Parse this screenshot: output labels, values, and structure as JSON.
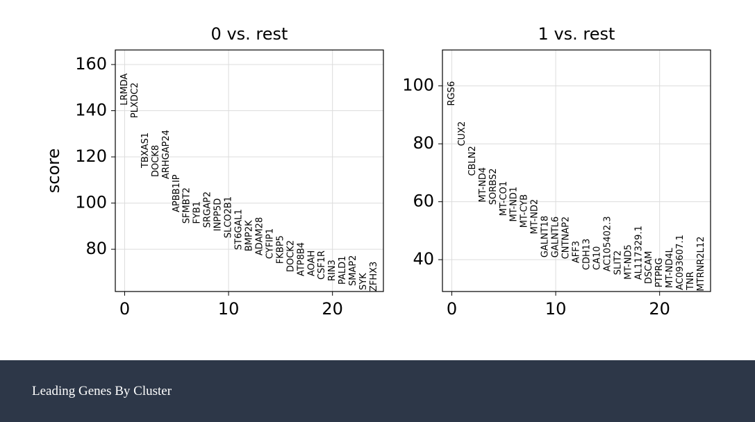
{
  "chart_data": [
    {
      "type": "scatter",
      "title": "0 vs. rest",
      "ylabel": "score",
      "x": [
        0,
        1,
        2,
        3,
        4,
        5,
        6,
        7,
        8,
        9,
        10,
        11,
        12,
        13,
        14,
        15,
        16,
        17,
        18,
        19,
        20,
        21,
        22,
        23,
        24
      ],
      "categories": [
        "LRMDA",
        "PLXDC2",
        "TBXAS1",
        "DOCK8",
        "ARHGAP24",
        "APBB1IP",
        "SFMBT2",
        "FYB1",
        "SRGAP2",
        "INPP5D",
        "SLCO2B1",
        "ST6GAL1",
        "BMP2K",
        "ADAM28",
        "CYFIP1",
        "FKBP5",
        "DOCK2",
        "ATP8B4",
        "AOAH",
        "CSF1R",
        "RIN3",
        "PALD1",
        "SMAP2",
        "SYK",
        "ZFHX3"
      ],
      "values": [
        142.3,
        136.8,
        115.2,
        111.3,
        110.4,
        96,
        91.1,
        91,
        89.3,
        87.8,
        84.8,
        79.7,
        79.1,
        77.3,
        75.8,
        73.7,
        70.1,
        68.3,
        68.3,
        66.8,
        66.2,
        64.7,
        64.1,
        62.3,
        61.7
      ],
      "xlim": [
        -0.9,
        24.9
      ],
      "ylim": [
        61.7,
        166.3
      ],
      "xticks": [
        0,
        10,
        20
      ],
      "yticks": [
        80,
        100,
        120,
        140,
        160
      ],
      "grid": true,
      "color": "#000000"
    },
    {
      "type": "scatter",
      "title": "1 vs. rest",
      "x": [
        0,
        1,
        2,
        3,
        4,
        5,
        6,
        7,
        8,
        9,
        10,
        11,
        12,
        13,
        14,
        15,
        16,
        17,
        18,
        19,
        20,
        21,
        22,
        23,
        24
      ],
      "categories": [
        "RGS6",
        "CUX2",
        "CBLN2",
        "MT-ND4",
        "SORBS2",
        "MT-CO1",
        "MT-ND1",
        "MT-CYB",
        "MT-ND2",
        "GALNT18",
        "GALNTL6",
        "CNTNAP2",
        "AFF3",
        "CDH13",
        "CA10",
        "AC105402.3",
        "SLIT2",
        "MT-ND5",
        "AL117329.1",
        "DSCAM",
        "PTPRG",
        "MT-ND4L",
        "AC093607.1",
        "TNR",
        "MTRNR2L12"
      ],
      "values": [
        93.1,
        79.2,
        68.9,
        59.8,
        58.9,
        55.1,
        53.1,
        51,
        48.8,
        40.7,
        40.7,
        40.2,
        38.8,
        36.4,
        36.4,
        35.9,
        34.7,
        33.1,
        33,
        31.6,
        30.4,
        30.2,
        29.5,
        29.5,
        29.1
      ],
      "xlim": [
        -0.9,
        24.9
      ],
      "ylim": [
        29,
        112.4
      ],
      "xticks": [
        0,
        10,
        20
      ],
      "yticks": [
        40,
        60,
        80,
        100
      ],
      "grid": true,
      "color": "#000000"
    }
  ],
  "caption": "Leading Genes By Cluster"
}
